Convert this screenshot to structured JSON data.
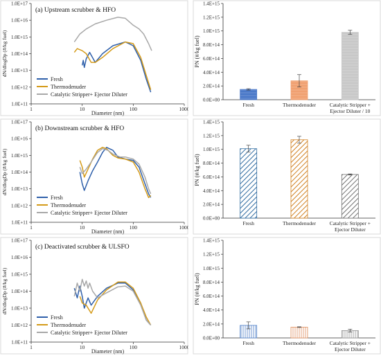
{
  "chart_data": [
    {
      "type": "line",
      "title": "(a) Upstream scrubber & HFO",
      "xlabel": "Diameter (nm)",
      "ylabel": "dN/dlogDp (#/kg fuel)",
      "xscale": "log",
      "yscale": "log",
      "xlim": [
        1,
        1000
      ],
      "ylim": [
        100000000000.0,
        1e+17
      ],
      "x_ticks": [
        "1",
        "10",
        "100",
        "1000"
      ],
      "y_ticks": [
        "1.0E+11",
        "1.0E+12",
        "1.0E+13",
        "1.0E+14",
        "1.0E+15",
        "1.0E+16",
        "1.0E+17"
      ],
      "legend_position": "bottom-left",
      "series": [
        {
          "name": "Fresh",
          "color": "#2e5faa",
          "points": [
            [
              10,
              20000000000000.0
            ],
            [
              10.5,
              40000000000000.0
            ],
            [
              11,
              15000000000000.0
            ],
            [
              12,
              50000000000000.0
            ],
            [
              14,
              120000000000000.0
            ],
            [
              18,
              30000000000000.0
            ],
            [
              25,
              100000000000000.0
            ],
            [
              40,
              300000000000000.0
            ],
            [
              70,
              500000000000000.0
            ],
            [
              100,
              300000000000000.0
            ],
            [
              140,
              40000000000000.0
            ],
            [
              180,
              3000000000000.0
            ],
            [
              220,
              500000000000.0
            ]
          ]
        },
        {
          "name": "Thermodenuder",
          "color": "#d49a18",
          "points": [
            [
              7,
              120000000000000.0
            ],
            [
              8,
              200000000000000.0
            ],
            [
              10,
              150000000000000.0
            ],
            [
              12,
              100000000000000.0
            ],
            [
              15,
              30000000000000.0
            ],
            [
              18,
              30000000000000.0
            ],
            [
              25,
              60000000000000.0
            ],
            [
              40,
              200000000000000.0
            ],
            [
              70,
              500000000000000.0
            ],
            [
              100,
              400000000000000.0
            ],
            [
              140,
              60000000000000.0
            ],
            [
              180,
              5000000000000.0
            ],
            [
              220,
              700000000000.0
            ]
          ]
        },
        {
          "name": "Catalytic Stripper+ Ejector Diluter",
          "color": "#a8a8a8",
          "points": [
            [
              7,
              500000000000000.0
            ],
            [
              9,
              1500000000000000.0
            ],
            [
              12,
              3000000000000000.0
            ],
            [
              18,
              6000000000000000.0
            ],
            [
              30,
              1e+16
            ],
            [
              50,
              1.5e+16
            ],
            [
              70,
              1.3e+16
            ],
            [
              100,
              5000000000000000.0
            ],
            [
              130,
              3000000000000000.0
            ],
            [
              160,
              1500000000000000.0
            ],
            [
              200,
              400000000000000.0
            ],
            [
              230,
              150000000000000.0
            ]
          ]
        }
      ]
    },
    {
      "type": "bar",
      "title": "",
      "xlabel": "",
      "ylabel": "PN (#/kg fuel)",
      "ylim": [
        0,
        1400000000000000.0
      ],
      "y_ticks": [
        "0.0E+00",
        "2.0E+14",
        "4.0E+14",
        "6.0E+14",
        "8.0E+14",
        "1.0E+15",
        "1.2E+15",
        "1.4E+15"
      ],
      "categories": [
        "Fresh",
        "Thermodenuder",
        "Catalytic Stripper +|Ejector Diluter / 10"
      ],
      "values": [
        150000000000000.0,
        275000000000000.0,
        980000000000000.0
      ],
      "errors": [
        10000000000000.0,
        90000000000000.0,
        30000000000000.0
      ],
      "colors": [
        "#4a78c8",
        "#f0a070",
        "#c8c8c8"
      ],
      "pattern": "solid"
    },
    {
      "type": "line",
      "title": "(b) Downstream scrubber & HFO",
      "xlabel": "Diameter (nm)",
      "ylabel": "dN/dlogDp (#/kg fuel)",
      "xscale": "log",
      "yscale": "log",
      "xlim": [
        1,
        1000
      ],
      "ylim": [
        100000000000.0,
        1e+17
      ],
      "x_ticks": [
        "1",
        "10",
        "100",
        "1000"
      ],
      "y_ticks": [
        "1.0E+11",
        "1.0E+12",
        "1.0E+13",
        "1.0E+14",
        "1.0E+15",
        "1.0E+16",
        "1.0E+17"
      ],
      "legend_position": "bottom-left",
      "series": [
        {
          "name": "Fresh",
          "color": "#2e5faa",
          "points": [
            [
              9,
              100000000000000.0
            ],
            [
              10,
              20000000000000.0
            ],
            [
              11,
              8000000000000.0
            ],
            [
              13,
              30000000000000.0
            ],
            [
              16,
              120000000000000.0
            ],
            [
              20,
              400000000000000.0
            ],
            [
              25,
              1500000000000000.0
            ],
            [
              30,
              3000000000000000.0
            ],
            [
              40,
              2000000000000000.0
            ],
            [
              50,
              800000000000000.0
            ],
            [
              70,
              600000000000000.0
            ],
            [
              100,
              500000000000000.0
            ],
            [
              130,
              200000000000000.0
            ],
            [
              170,
              20000000000000.0
            ],
            [
              200,
              5000000000000.0
            ],
            [
              220,
              3000000000000.0
            ]
          ]
        },
        {
          "name": "Thermodenuder",
          "color": "#d49a18",
          "points": [
            [
              9,
              500000000000000.0
            ],
            [
              10,
              200000000000000.0
            ],
            [
              11,
              50000000000000.0
            ],
            [
              13,
              150000000000000.0
            ],
            [
              16,
              600000000000000.0
            ],
            [
              20,
              2000000000000000.0
            ],
            [
              25,
              3000000000000000.0
            ],
            [
              30,
              2500000000000000.0
            ],
            [
              40,
              1000000000000000.0
            ],
            [
              50,
              700000000000000.0
            ],
            [
              70,
              600000000000000.0
            ],
            [
              100,
              400000000000000.0
            ],
            [
              130,
              100000000000000.0
            ],
            [
              170,
              10000000000000.0
            ],
            [
              200,
              3000000000000.0
            ],
            [
              220,
              4000000000000.0
            ]
          ]
        },
        {
          "name": "Catalytic Stripper+ Ejector Diluter",
          "color": "#a8a8a8",
          "points": [
            [
              9,
              200000000000000.0
            ],
            [
              10,
              80000000000000.0
            ],
            [
              12,
              150000000000000.0
            ],
            [
              15,
              400000000000000.0
            ],
            [
              20,
              1500000000000000.0
            ],
            [
              25,
              2500000000000000.0
            ],
            [
              32,
              2000000000000000.0
            ],
            [
              40,
              1200000000000000.0
            ],
            [
              55,
              800000000000000.0
            ],
            [
              70,
              800000000000000.0
            ],
            [
              100,
              600000000000000.0
            ],
            [
              130,
              300000000000000.0
            ],
            [
              170,
              50000000000000.0
            ],
            [
              200,
              10000000000000.0
            ],
            [
              220,
              5000000000000.0
            ]
          ]
        }
      ]
    },
    {
      "type": "bar",
      "title": "",
      "xlabel": "",
      "ylabel": "PN (#/kg fuel)",
      "ylim": [
        0,
        1400000000000000.0
      ],
      "y_ticks": [
        "0.0E+00",
        "2.0E+14",
        "4.0E+14",
        "6.0E+14",
        "8.0E+14",
        "1.0E+15",
        "1.2E+15",
        "1.4E+15"
      ],
      "categories": [
        "Fresh",
        "Thermodenuder",
        "Catalytic Stripper +|Ejector Diluter"
      ],
      "values": [
        1010000000000000.0,
        1140000000000000.0,
        635000000000000.0
      ],
      "errors": [
        50000000000000.0,
        50000000000000.0,
        8000000000000.0
      ],
      "colors": [
        "#2e6aa0",
        "#d08020",
        "#707070"
      ],
      "pattern": "diagonal"
    },
    {
      "type": "line",
      "title": "(c) Deactivated scrubber & ULSFO",
      "xlabel": "Diameter (nm)",
      "ylabel": "dN/dlogDp (#/kg fuel)",
      "xscale": "log",
      "yscale": "log",
      "xlim": [
        1,
        1000
      ],
      "ylim": [
        100000000000.0,
        1e+17
      ],
      "x_ticks": [
        "1",
        "10",
        "100",
        "1000"
      ],
      "y_ticks": [
        "1.0E+11",
        "1.0E+12",
        "1.0E+13",
        "1.0E+14",
        "1.0E+15",
        "1.0E+16",
        "1.0E+17"
      ],
      "legend_position": "bottom-left",
      "series": [
        {
          "name": "Fresh",
          "color": "#2e5faa",
          "points": [
            [
              7,
              150000000000000.0
            ],
            [
              8,
              40000000000000.0
            ],
            [
              9,
              200000000000000.0
            ],
            [
              10,
              50000000000000.0
            ],
            [
              11,
              10000000000000.0
            ],
            [
              13,
              40000000000000.0
            ],
            [
              15,
              15000000000000.0
            ],
            [
              20,
              50000000000000.0
            ],
            [
              30,
              150000000000000.0
            ],
            [
              50,
              300000000000000.0
            ],
            [
              70,
              300000000000000.0
            ],
            [
              100,
              120000000000000.0
            ],
            [
              140,
              20000000000000.0
            ],
            [
              180,
              2000000000000.0
            ],
            [
              220,
              1000000000000.0
            ]
          ]
        },
        {
          "name": "Thermodenuder",
          "color": "#d49a18",
          "points": [
            [
              9,
              50000000000000.0
            ],
            [
              10,
              20000000000000.0
            ],
            [
              12,
              15000000000000.0
            ],
            [
              15,
              5000000000000.0
            ],
            [
              20,
              30000000000000.0
            ],
            [
              30,
              120000000000000.0
            ],
            [
              50,
              350000000000000.0
            ],
            [
              70,
              350000000000000.0
            ],
            [
              100,
              150000000000000.0
            ],
            [
              140,
              20000000000000.0
            ],
            [
              180,
              3000000000000.0
            ],
            [
              220,
              1000000000000.0
            ]
          ]
        },
        {
          "name": "Catalytic Stripper+ Ejector Diluter",
          "color": "#a8a8a8",
          "points": [
            [
              7,
              50000000000000.0
            ],
            [
              8,
              300000000000000.0
            ],
            [
              9,
              100000000000000.0
            ],
            [
              10,
              500000000000000.0
            ],
            [
              11,
              200000000000000.0
            ],
            [
              12,
              400000000000000.0
            ],
            [
              13,
              150000000000000.0
            ],
            [
              14,
              300000000000000.0
            ],
            [
              16,
              100000000000000.0
            ],
            [
              20,
              40000000000000.0
            ],
            [
              30,
              80000000000000.0
            ],
            [
              50,
              180000000000000.0
            ],
            [
              70,
              200000000000000.0
            ],
            [
              100,
              100000000000000.0
            ],
            [
              140,
              15000000000000.0
            ],
            [
              180,
              2000000000000.0
            ],
            [
              220,
              1000000000000.0
            ]
          ]
        }
      ]
    },
    {
      "type": "bar",
      "title": "",
      "xlabel": "",
      "ylabel": "PN (#/kg fuel)",
      "ylim": [
        0,
        1400000000000000.0
      ],
      "y_ticks": [
        "0.0E+00",
        "2.0E+14",
        "4.0E+14",
        "6.0E+14",
        "8.0E+14",
        "1.0E+15",
        "1.2E+15",
        "1.4E+15"
      ],
      "categories": [
        "Fresh",
        "Thermodenuder",
        "Catalytic Stripper +|Ejector Diluter"
      ],
      "values": [
        180000000000000.0,
        155000000000000.0,
        105000000000000.0
      ],
      "errors": [
        50000000000000.0,
        5000000000000.0,
        20000000000000.0
      ],
      "colors": [
        "#5080c8",
        "#e09060",
        "#909090"
      ],
      "pattern": "vertical"
    }
  ]
}
